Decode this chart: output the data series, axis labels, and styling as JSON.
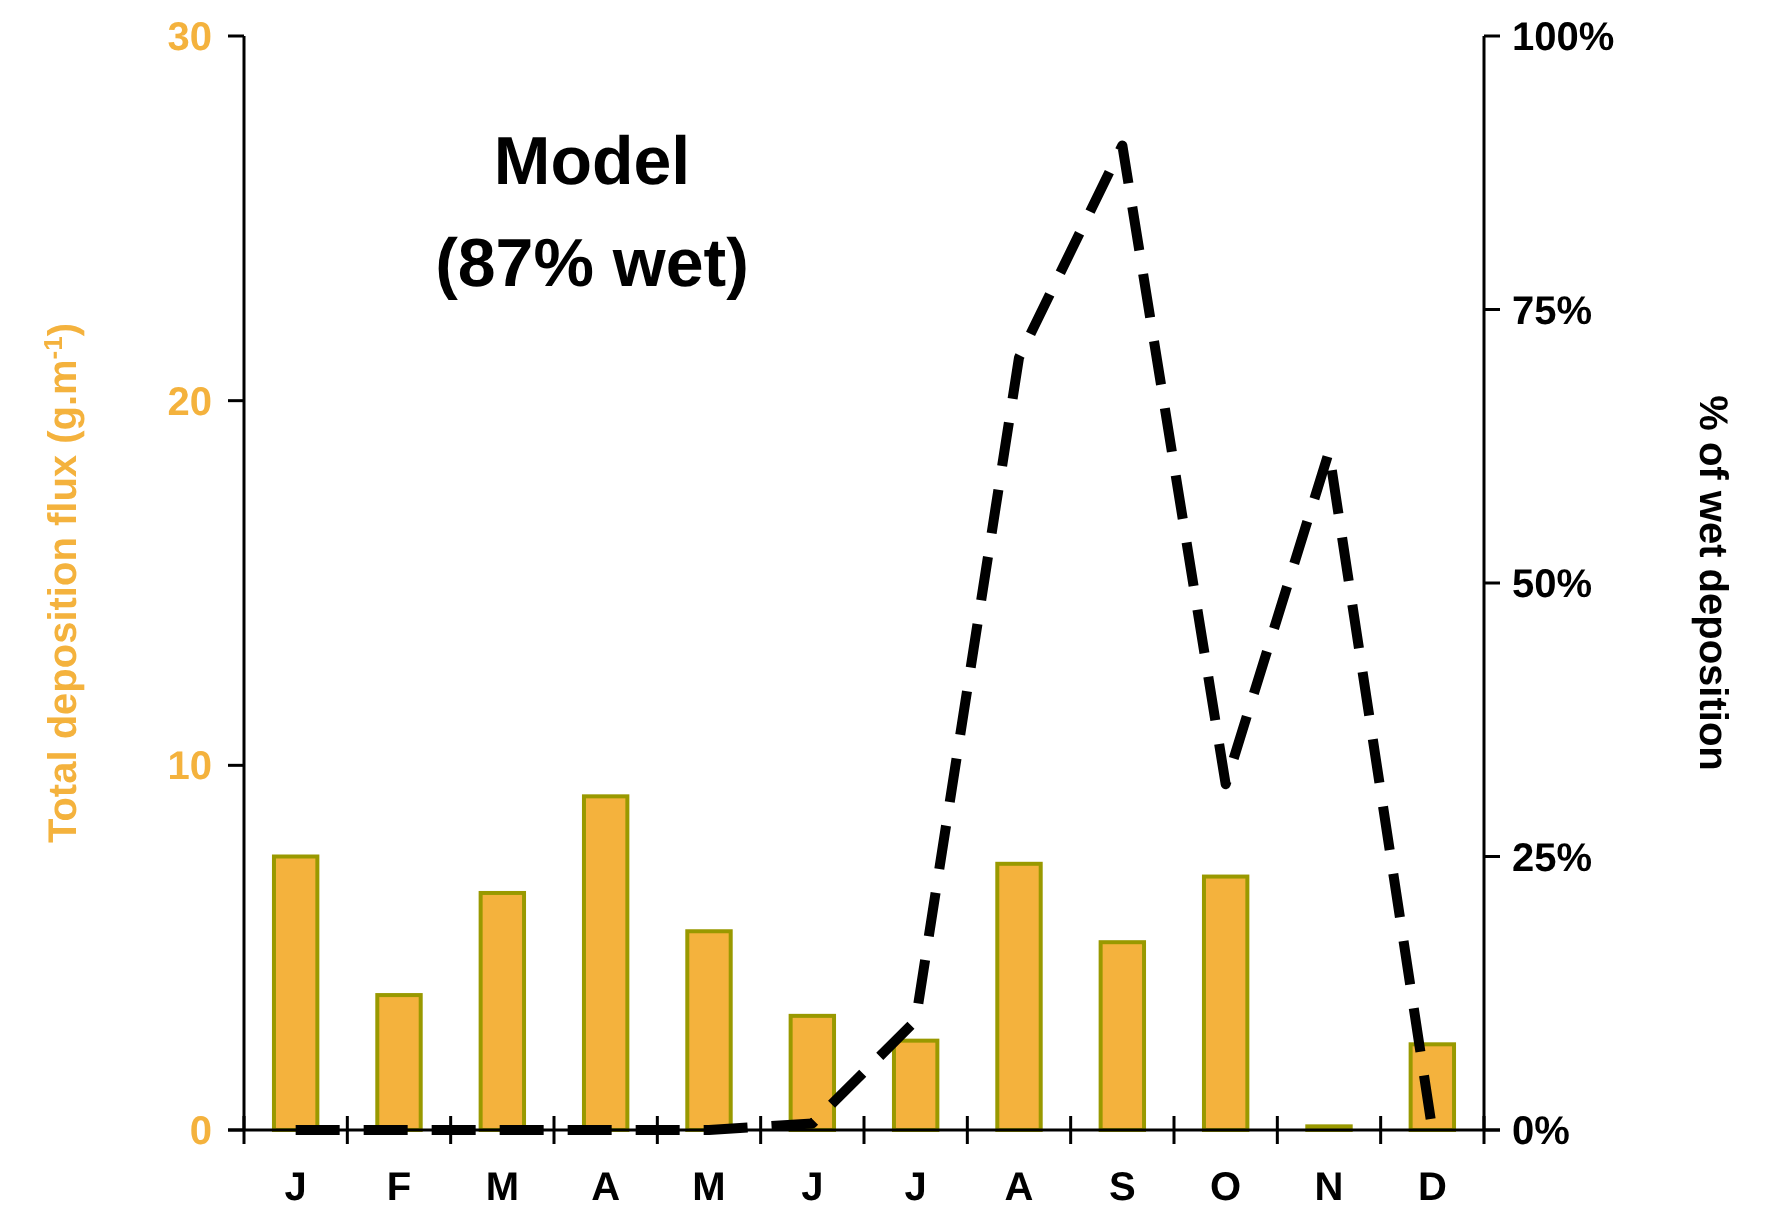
{
  "chart_data": {
    "type": "bar",
    "title": "Model",
    "subtitle": "(87% wet)",
    "ylabel": "Total deposition flux (g.m$^{-1}$)",
    "y2label": "% of wet deposition",
    "categories": [
      "J",
      "F",
      "M",
      "A",
      "M",
      "J",
      "J",
      "A",
      "S",
      "O",
      "N",
      "D"
    ],
    "series": [
      {
        "color": "#f4b23d",
        "values": [
          7.5,
          3.7,
          6.5,
          9.15,
          5.45,
          3.13,
          2.45,
          7.3,
          5.15,
          6.95,
          0.1,
          2.35
        ]
      },
      {
        "type": "line",
        "axis": "y2",
        "color": "#000000",
        "line_style": "dashed",
        "marker": "none",
        "values": [
          0,
          0,
          0,
          0,
          0,
          0.6,
          10,
          70.6,
          90,
          31.6,
          62,
          0
        ]
      }
    ],
    "ylim": [
      0,
      30
    ],
    "yticks": [
      0,
      10,
      20,
      30
    ],
    "y2lim": [
      0,
      100
    ],
    "y2ticks": [
      {
        "value": 0,
        "label": "0%"
      },
      {
        "value": 25,
        "label": "25%"
      },
      {
        "value": 50,
        "label": "50%"
      },
      {
        "value": 75,
        "label": "75%"
      },
      {
        "value": 100,
        "label": "100%"
      }
    ],
    "grid": false
  }
}
